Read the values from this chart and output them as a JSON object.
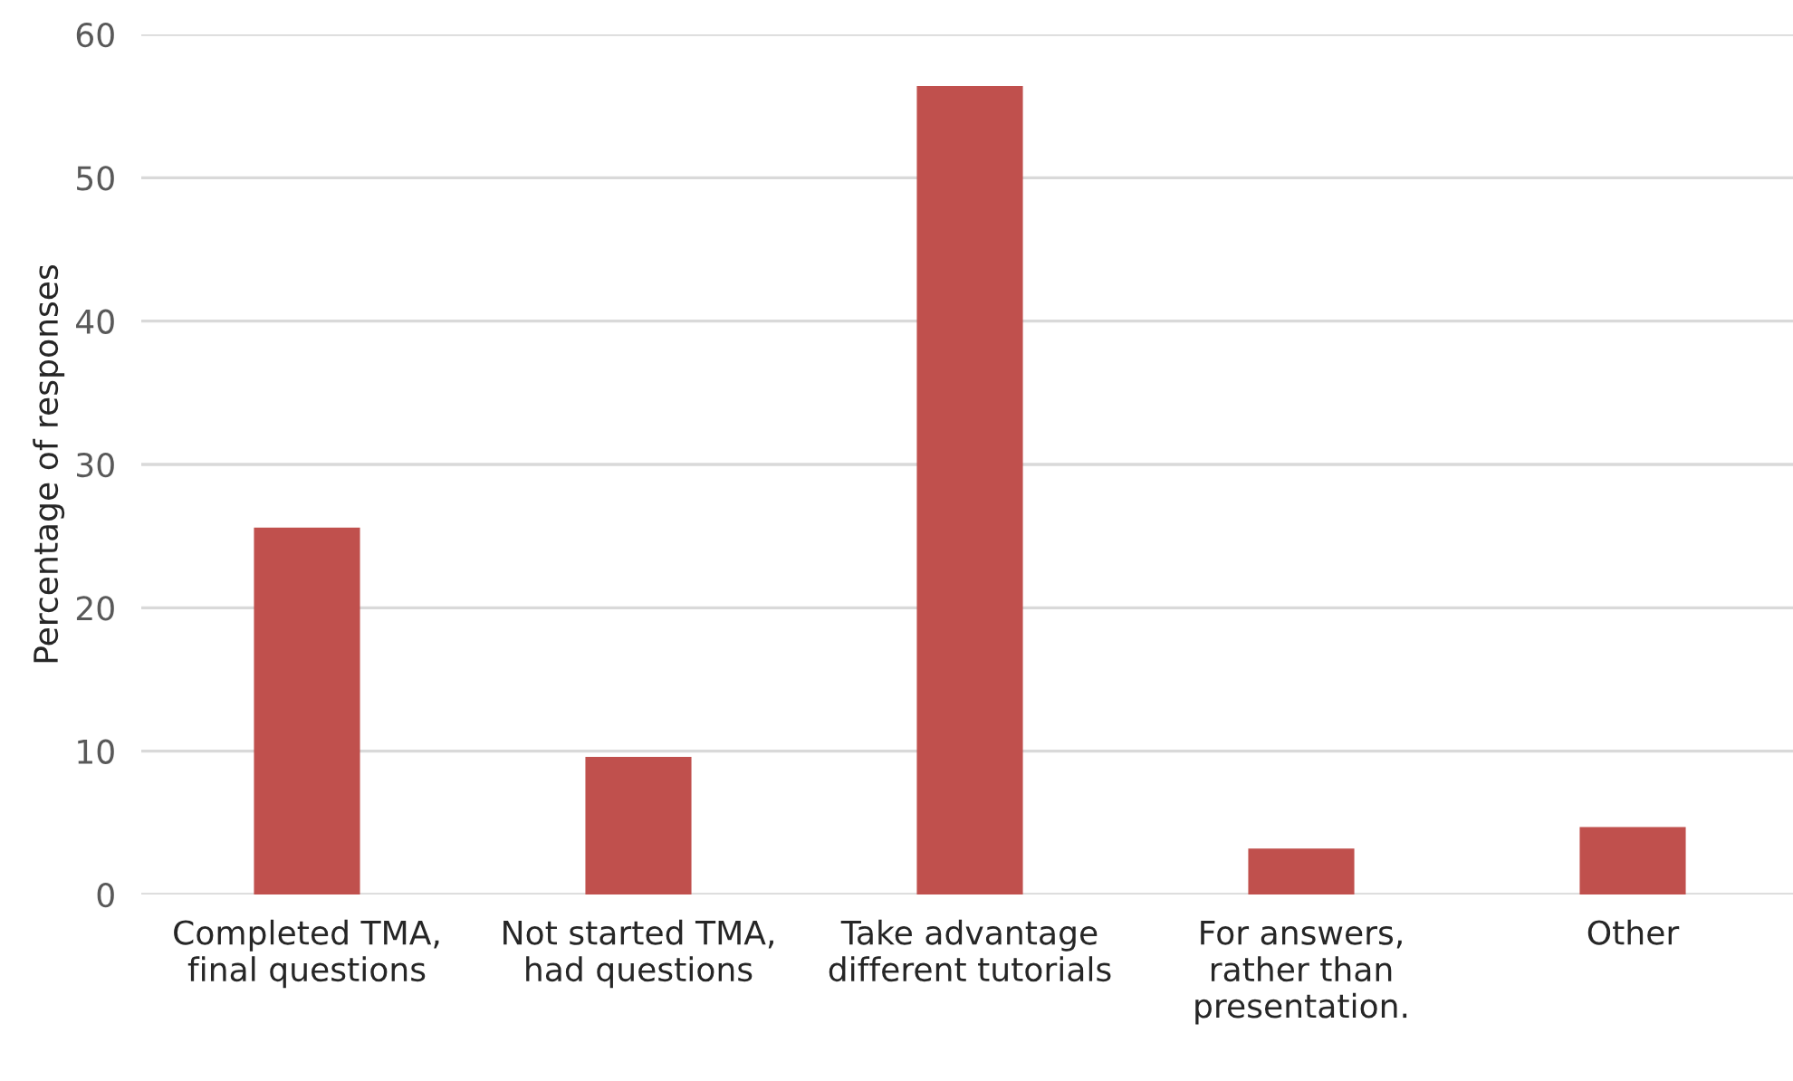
{
  "chart_data": {
    "type": "bar",
    "ylabel": "Percentage of responses",
    "categories": [
      "Completed TMA,\nfinal questions",
      "Not started TMA,\nhad questions",
      "Take advantage\ndifferent tutorials",
      "For answers,\nrather than\npresentation.",
      "Other"
    ],
    "values": [
      25.6,
      9.6,
      56.4,
      3.2,
      4.7
    ],
    "color": "#c0504d",
    "ylim": [
      0,
      60
    ],
    "yticks": [
      0,
      10,
      20,
      30,
      40,
      50,
      60
    ],
    "grid": "y",
    "legend": false
  }
}
